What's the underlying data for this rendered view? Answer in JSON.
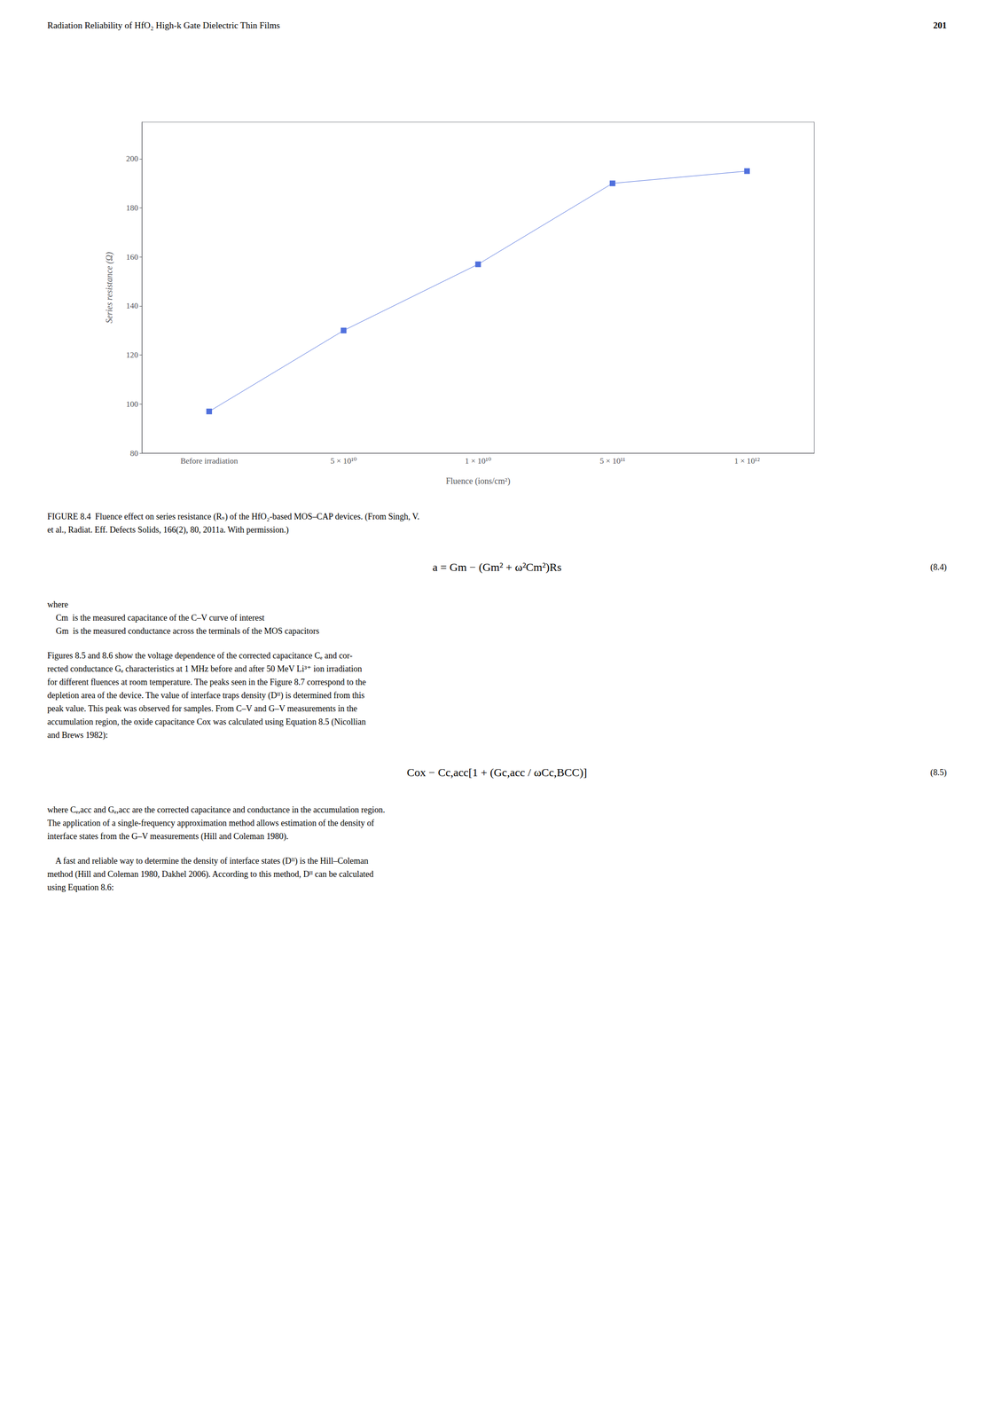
{
  "chart_data": {
    "type": "line",
    "categories": [
      "Before irradiation",
      "5 × 10¹⁰",
      "1 × 10¹⁰",
      "5 × 10¹¹",
      "1 × 10¹²"
    ],
    "values": [
      97,
      130,
      157,
      190,
      195
    ],
    "marker": "square",
    "xlabel": "Fluence (ions/cm²)",
    "ylabel": "Series resistance (Ω)",
    "ylim": [
      80,
      215
    ],
    "yticks": [
      80,
      100,
      120,
      140,
      160,
      180,
      200
    ],
    "grid": false,
    "annotations": [
      [
        "Radiation Reliability of HfO₂ High-k Gate Dielectric Thin Films",
        "201"
      ],
      [
        "FIGURE 8.4  Fluence effect on series resistance (Rₛ) of the HfO₂-based MOS–CAP devices. (From Singh, V."
      ],
      [
        "et al., Radiat. Eff. Defects Solids, 166(2), 80, 2011a. With permission.)"
      ],
      [
        "a = Gm − (Gm² + ω²Cm²)Rs",
        "(8.4)"
      ],
      [
        "where"
      ],
      [
        "    Cm  is the measured capacitance of the C–V curve of interest"
      ],
      [
        "    Gm  is the measured conductance across the terminals of the MOS capacitors"
      ],
      [
        "Figures 8.5 and 8.6 show the voltage dependence of the corrected capacitance Cₑ and cor-"
      ],
      [
        "rected conductance Gₑ characteristics at 1 MHz before and after 50 MeV Li³⁺ ion irradiation"
      ],
      [
        "for different fluences at room temperature. The peaks seen in the Figure 8.7 correspond to the"
      ],
      [
        "depletion area of the device. The value of interface traps density (Dᴵᴵ) is determined from this"
      ],
      [
        "peak value. This peak was observed for samples. From C–V and G–V measurements in the"
      ],
      [
        "accumulation region, the oxide capacitance Cox was calculated using Equation 8.5 (Nicollian"
      ],
      [
        "and Brews 1982):"
      ],
      [
        "Cox − Cc,acc[1 + (Gc,acc / ωCc,BCC)]",
        "(8.5)"
      ],
      [
        "where Cₑ,acc and Gₑ,acc are the corrected capacitance and conductance in the accumulation region."
      ],
      [
        "The application of a single-frequency approximation method allows estimation of the density of"
      ],
      [
        "interface states from the G–V measurements (Hill and Coleman 1980)."
      ],
      [
        "    A fast and reliable way to determine the density of interface states (Dᴵᴵ) is the Hill–Coleman"
      ],
      [
        "method (Hill and Coleman 1980, Dakhel 2006). According to this method, Dᴵᴵ can be calculated"
      ],
      [
        "using Equation 8.6:"
      ]
    ]
  }
}
